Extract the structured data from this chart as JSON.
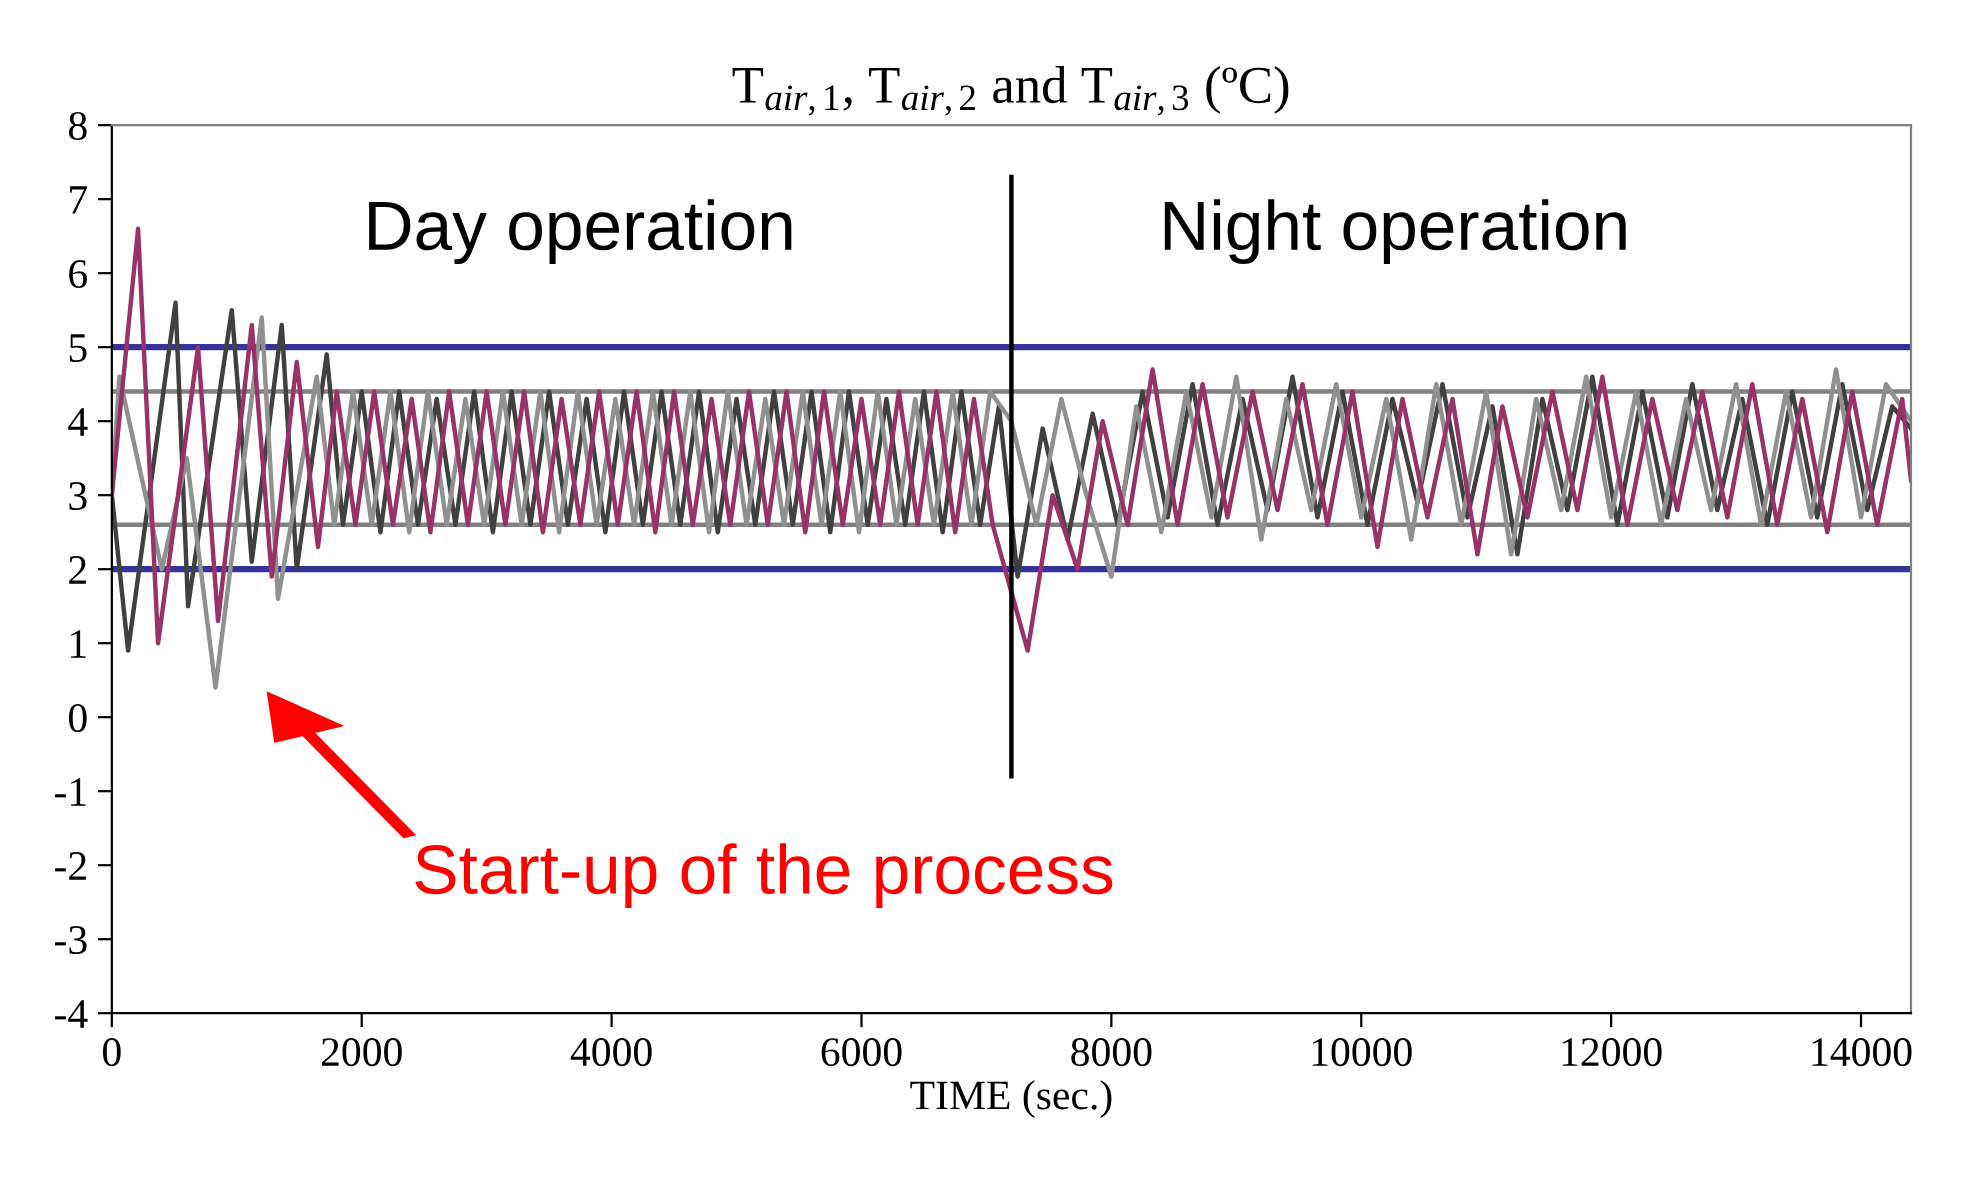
{
  "chart_data": {
    "type": "line",
    "title": "T$_{air,1}$, T$_{air,2}$ and T$_{air,3}$ (ºC)",
    "xlabel": "TIME (sec.)",
    "xlim": [
      0,
      14400
    ],
    "xticks": [
      0,
      2000,
      4000,
      6000,
      8000,
      10000,
      12000,
      14000
    ],
    "ylim": [
      -4,
      8
    ],
    "yticks": [
      -4,
      -3,
      -2,
      -1,
      0,
      1,
      2,
      3,
      4,
      5,
      6,
      7,
      8
    ],
    "grid": false,
    "legend": false,
    "marker": "none",
    "line_style": "solid",
    "series": [
      {
        "color": "#404040",
        "x": [
          0,
          130,
          510,
          610,
          960,
          1120,
          1360,
          1480,
          1720,
          1850,
          2000,
          2150,
          2300,
          2450,
          2600,
          2750,
          2900,
          3050,
          3200,
          3350,
          3500,
          3650,
          3800,
          3950,
          4100,
          4250,
          4400,
          4550,
          4700,
          4850,
          5000,
          5150,
          5300,
          5450,
          5600,
          5750,
          5900,
          6050,
          6200,
          6350,
          6500,
          6650,
          6800,
          6950,
          7100,
          7250,
          7450,
          7650,
          7850,
          8050,
          8250,
          8450,
          8650,
          8850,
          9050,
          9250,
          9450,
          9650,
          9850,
          10050,
          10250,
          10450,
          10650,
          10850,
          11050,
          11250,
          11450,
          11650,
          11850,
          12050,
          12250,
          12450,
          12650,
          12850,
          13050,
          13250,
          13450,
          13650,
          13850,
          14050,
          14250,
          14400
        ],
        "values": [
          3.0,
          0.9,
          5.6,
          1.5,
          5.5,
          2.1,
          5.3,
          2.0,
          4.9,
          2.6,
          4.4,
          2.5,
          4.4,
          2.6,
          4.3,
          2.6,
          4.4,
          2.5,
          4.4,
          2.6,
          4.4,
          2.6,
          4.3,
          2.5,
          4.4,
          2.6,
          4.4,
          2.6,
          4.4,
          2.5,
          4.3,
          2.6,
          4.4,
          2.6,
          4.4,
          2.5,
          4.4,
          2.6,
          4.3,
          2.6,
          4.4,
          2.5,
          4.4,
          2.6,
          4.2,
          1.9,
          3.9,
          2.4,
          4.1,
          2.6,
          4.4,
          2.7,
          4.5,
          2.6,
          4.3,
          2.8,
          4.6,
          2.7,
          4.4,
          2.6,
          4.3,
          2.9,
          4.5,
          2.7,
          4.2,
          2.2,
          4.3,
          2.8,
          4.6,
          2.6,
          4.4,
          2.7,
          4.5,
          2.8,
          4.3,
          2.6,
          4.4,
          2.7,
          4.5,
          2.8,
          4.2,
          3.9
        ]
      },
      {
        "color": "#909090",
        "x": [
          0,
          60,
          400,
          600,
          830,
          1200,
          1330,
          1640,
          1780,
          1930,
          2080,
          2230,
          2380,
          2530,
          2680,
          2830,
          2980,
          3130,
          3280,
          3430,
          3580,
          3730,
          3880,
          4030,
          4180,
          4330,
          4480,
          4630,
          4780,
          4930,
          5080,
          5230,
          5380,
          5530,
          5680,
          5830,
          5980,
          6130,
          6280,
          6430,
          6580,
          6730,
          6880,
          7030,
          7200,
          7400,
          7600,
          7800,
          8000,
          8200,
          8400,
          8600,
          8800,
          9000,
          9200,
          9400,
          9600,
          9800,
          10000,
          10200,
          10400,
          10600,
          10800,
          11000,
          11200,
          11400,
          11600,
          11800,
          12000,
          12200,
          12400,
          12600,
          12800,
          13000,
          13200,
          13400,
          13600,
          13800,
          14000,
          14200,
          14400
        ],
        "values": [
          3.0,
          4.6,
          2.0,
          3.5,
          0.4,
          5.4,
          1.6,
          4.6,
          2.6,
          4.4,
          2.6,
          4.4,
          2.5,
          4.4,
          2.6,
          4.3,
          2.6,
          4.4,
          2.6,
          4.4,
          2.5,
          4.4,
          2.6,
          4.3,
          2.6,
          4.4,
          2.6,
          4.4,
          2.5,
          4.4,
          2.6,
          4.3,
          2.6,
          4.4,
          2.6,
          4.4,
          2.5,
          4.4,
          2.6,
          4.3,
          2.6,
          4.4,
          2.6,
          4.4,
          4.0,
          2.6,
          4.3,
          3.0,
          1.9,
          4.2,
          2.5,
          4.4,
          2.7,
          4.6,
          2.4,
          4.3,
          2.8,
          4.5,
          2.7,
          4.3,
          2.4,
          4.5,
          2.6,
          4.4,
          2.2,
          4.3,
          2.8,
          4.6,
          2.7,
          4.4,
          2.6,
          4.3,
          2.8,
          4.5,
          2.6,
          4.4,
          2.7,
          4.7,
          2.7,
          4.5,
          4.0
        ]
      },
      {
        "color": "#993366",
        "x": [
          0,
          210,
          370,
          690,
          850,
          1120,
          1280,
          1480,
          1650,
          1800,
          1950,
          2100,
          2250,
          2400,
          2550,
          2700,
          2850,
          3000,
          3150,
          3300,
          3450,
          3600,
          3750,
          3900,
          4050,
          4200,
          4350,
          4500,
          4650,
          4800,
          4950,
          5100,
          5250,
          5400,
          5550,
          5700,
          5850,
          6000,
          6150,
          6300,
          6450,
          6600,
          6750,
          6900,
          7050,
          7330,
          7530,
          7730,
          7930,
          8130,
          8330,
          8530,
          8730,
          8930,
          9130,
          9330,
          9530,
          9730,
          9930,
          10130,
          10330,
          10530,
          10730,
          10930,
          11130,
          11330,
          11530,
          11730,
          11930,
          12130,
          12330,
          12530,
          12730,
          12930,
          13130,
          13330,
          13530,
          13730,
          13930,
          14130,
          14330,
          14400
        ],
        "values": [
          3.0,
          6.6,
          1.0,
          5.0,
          1.3,
          5.3,
          1.9,
          4.8,
          2.3,
          4.4,
          2.6,
          4.4,
          2.6,
          4.3,
          2.5,
          4.4,
          2.6,
          4.4,
          2.6,
          4.4,
          2.5,
          4.3,
          2.6,
          4.4,
          2.6,
          4.4,
          2.5,
          4.4,
          2.6,
          4.3,
          2.6,
          4.4,
          2.6,
          4.4,
          2.5,
          4.4,
          2.6,
          4.3,
          2.6,
          4.4,
          2.6,
          4.4,
          2.5,
          4.3,
          2.6,
          0.9,
          3.0,
          2.0,
          4.0,
          2.6,
          4.7,
          2.6,
          4.5,
          2.7,
          4.4,
          2.8,
          4.5,
          2.6,
          4.4,
          2.3,
          4.3,
          2.7,
          4.3,
          2.2,
          4.2,
          2.7,
          4.4,
          2.8,
          4.6,
          2.6,
          4.3,
          2.8,
          4.4,
          2.7,
          4.5,
          2.6,
          4.3,
          2.5,
          4.4,
          2.6,
          4.3,
          3.2
        ]
      },
      {
        "color": "#000000",
        "x": [
          7200,
          7200
        ],
        "values": [
          7.3,
          -0.8
        ]
      }
    ],
    "ref_lines": [
      {
        "axis": "y",
        "value": 5,
        "color": "#333399"
      },
      {
        "axis": "y",
        "value": 2,
        "color": "#333399"
      },
      {
        "axis": "y",
        "value": 4.4,
        "color": "#808080"
      },
      {
        "axis": "y",
        "value": 2.6,
        "color": "#808080"
      }
    ],
    "annotations": [
      "Day operation",
      "Night operation",
      "Start-up of the process"
    ]
  }
}
